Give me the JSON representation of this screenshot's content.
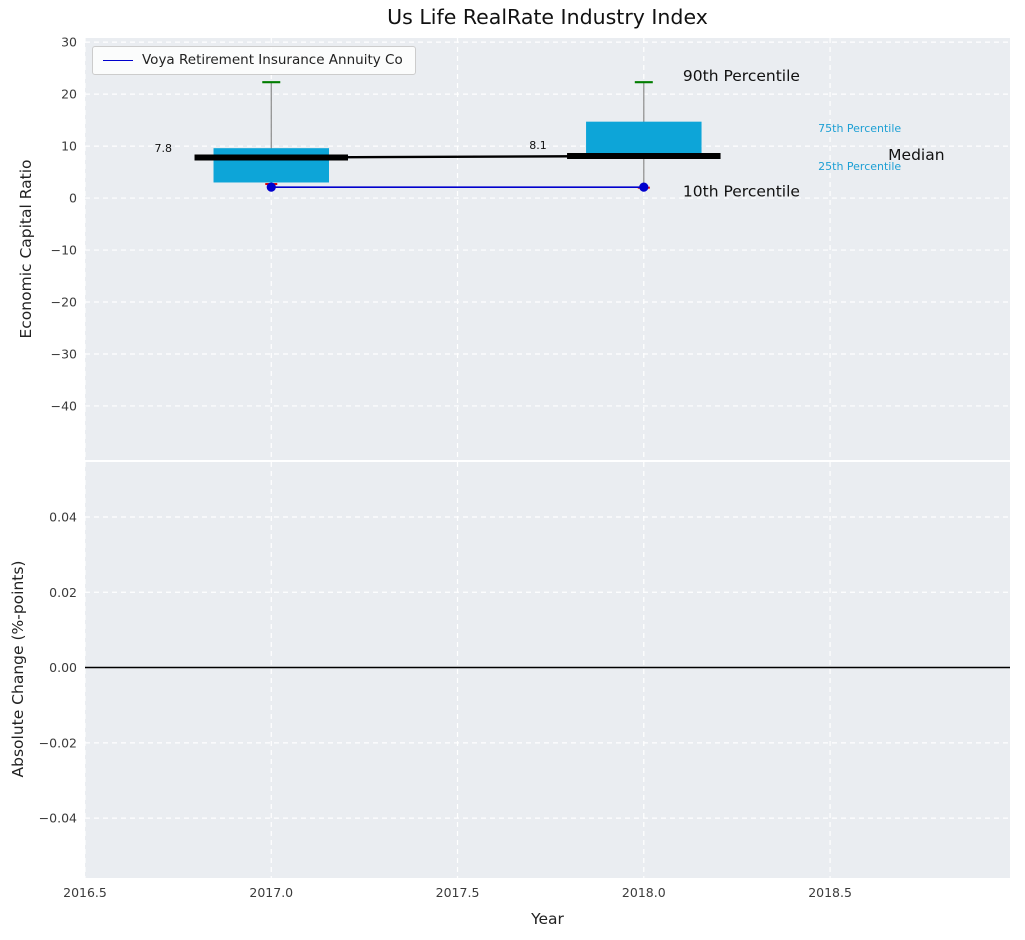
{
  "title": "Us Life RealRate Industry Index",
  "legend": {
    "label": "Voya Retirement Insurance Annuity Co"
  },
  "colors": {
    "plot_bg": "#eaedf1",
    "grid": "#ffffff",
    "box_fill": "#0da5d8",
    "median_line": "#000000",
    "whisker": "#8a8a8a",
    "cap_high": "#007d00",
    "cap_low": "#dd0000",
    "series_line": "#0000cd",
    "tick_label": "#3b3b3b",
    "annotation_cyan": "#1c9fd4",
    "zero_line": "#000000"
  },
  "chart_data": [
    {
      "type": "boxplot",
      "panel": "top",
      "title": "Us Life RealRate Industry Index",
      "ylabel": "Economic Capital Ratio",
      "ylim": [
        -50.4,
        30.8
      ],
      "xlim": [
        2016.5,
        2018.983
      ],
      "yticks": [
        30,
        20,
        10,
        0,
        -10,
        -20,
        -30,
        -40
      ],
      "ytick_labels": [
        "30",
        "20",
        "10",
        "0",
        "−10",
        "−20",
        "−30",
        "−40"
      ],
      "grid": true,
      "legend_position": "upper-left",
      "box_halfwidth": 0.155,
      "median_halfwidth": 0.206,
      "boxes": [
        {
          "x": 2017,
          "p10": 2.7,
          "q1": 3.0,
          "median": 7.8,
          "q3": 9.6,
          "p90": 22.3
        },
        {
          "x": 2018,
          "p10": 2.0,
          "q1": 7.9,
          "median": 8.1,
          "q3": 14.7,
          "p90": 22.3
        }
      ],
      "median_trend": {
        "x": [
          2017,
          2018
        ],
        "y": [
          7.8,
          8.1
        ]
      },
      "series": [
        {
          "name": "Voya Retirement Insurance Annuity Co",
          "x": [
            2017,
            2018
          ],
          "y": [
            2.1,
            2.1
          ]
        }
      ],
      "annotations": [
        {
          "text": "7.8",
          "x": 2016.71,
          "y": 8.9,
          "size": 11,
          "color": "#111111",
          "anchor": "middle"
        },
        {
          "text": "8.1",
          "x": 2017.716,
          "y": 9.4,
          "size": 11,
          "color": "#111111",
          "anchor": "middle"
        },
        {
          "text": "90th Percentile",
          "x": 2018.105,
          "y": 22.5,
          "size": 15.5,
          "color": "#111111",
          "anchor": "start"
        },
        {
          "text": "10th Percentile",
          "x": 2018.105,
          "y": 0.3,
          "size": 15.5,
          "color": "#111111",
          "anchor": "start"
        },
        {
          "text": "75th Percentile",
          "x": 2018.468,
          "y": 12.7,
          "size": 11,
          "color": "#1c9fd4",
          "anchor": "start"
        },
        {
          "text": "Median",
          "x": 2018.656,
          "y": 7.3,
          "size": 15.5,
          "color": "#111111",
          "anchor": "start"
        },
        {
          "text": "25th Percentile",
          "x": 2018.468,
          "y": 5.4,
          "size": 11,
          "color": "#1c9fd4",
          "anchor": "start"
        }
      ]
    },
    {
      "type": "line",
      "panel": "bottom",
      "ylabel": "Absolute Change (%-points)",
      "xlabel": "Year",
      "ylim": [
        -0.0559,
        0.0546
      ],
      "xlim": [
        2016.5,
        2018.983
      ],
      "yticks": [
        0.04,
        0.02,
        0.0,
        -0.02,
        -0.04
      ],
      "ytick_labels": [
        "0.04",
        "0.02",
        "0.00",
        "−0.02",
        "−0.04"
      ],
      "xticks": [
        2016.5,
        2017.0,
        2017.5,
        2018.0,
        2018.5
      ],
      "xtick_labels": [
        "2016.5",
        "2017.0",
        "2017.5",
        "2018.0",
        "2018.5"
      ],
      "grid": true,
      "zero_line_y": 0.0
    }
  ]
}
